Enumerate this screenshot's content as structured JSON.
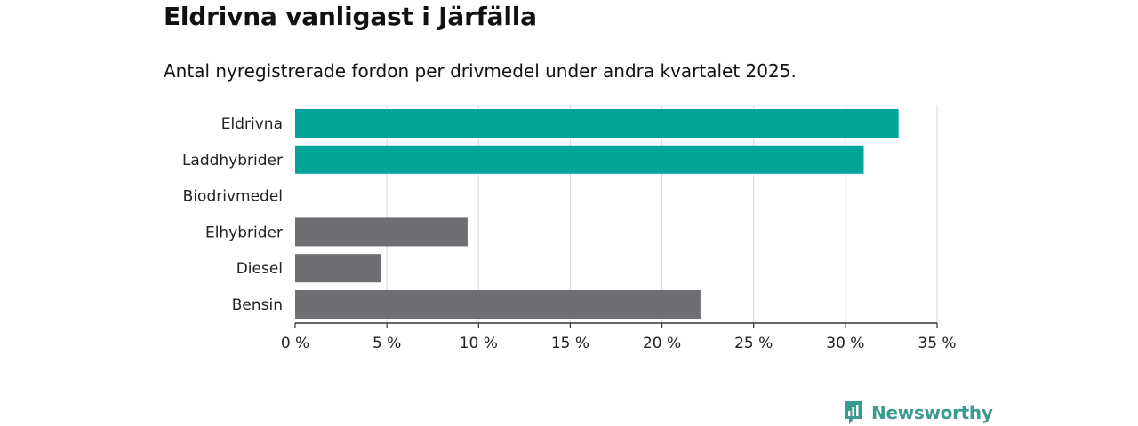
{
  "chart_data": {
    "type": "bar",
    "orientation": "horizontal",
    "title": "Eldrivna vanligast i Järfälla",
    "subtitle": "Antal nyregistrerade fordon per drivmedel under andra kvartalet 2025.",
    "categories": [
      "Eldrivna",
      "Laddhybrider",
      "Biodrivmedel",
      "Elhybrider",
      "Diesel",
      "Bensin"
    ],
    "values": [
      32.9,
      31.0,
      0,
      9.4,
      4.7,
      22.1
    ],
    "unit": "%",
    "colors": [
      "#00a499",
      "#00a499",
      "#6e6e73",
      "#6e6e73",
      "#6e6e73",
      "#6e6e73"
    ],
    "xlim": [
      0,
      35
    ],
    "xticks": [
      0,
      5,
      10,
      15,
      20,
      25,
      30,
      35
    ],
    "tick_labels": [
      "0 %",
      "5 %",
      "10 %",
      "15 %",
      "20 %",
      "25 %",
      "30 %",
      "35 %"
    ],
    "xlabel": "",
    "ylabel": "",
    "grid": true,
    "gridline_color": "#dddddd",
    "axis_color": "#333333"
  },
  "logo": {
    "text": "Newsworthy",
    "color": "#3a9b91"
  }
}
